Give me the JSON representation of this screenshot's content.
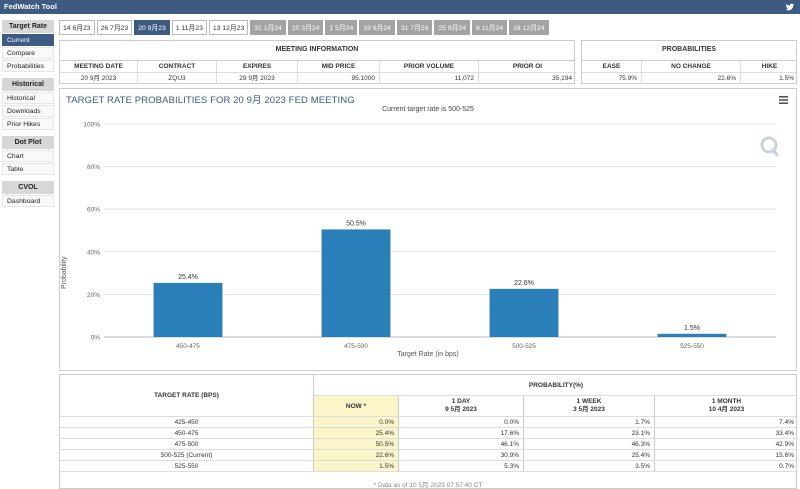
{
  "app": {
    "title": "FedWatch Tool"
  },
  "sidebar": {
    "groups": [
      {
        "header": "Target Rate",
        "items": [
          "Current",
          "Compare",
          "Probabilities"
        ]
      },
      {
        "header": "Historical",
        "items": [
          "Historical",
          "Downloads",
          "Prior Hikes"
        ]
      },
      {
        "header": "Dot Plot",
        "items": [
          "Chart",
          "Table"
        ]
      },
      {
        "header": "CVOL",
        "items": [
          "Dashboard"
        ]
      }
    ],
    "active_item": "Current"
  },
  "tabs": [
    {
      "label": "14 6月23",
      "state": "normal"
    },
    {
      "label": "26 7月23",
      "state": "normal"
    },
    {
      "label": "20 9月23",
      "state": "active"
    },
    {
      "label": "1 11月23",
      "state": "normal"
    },
    {
      "label": "13 12月23",
      "state": "normal"
    },
    {
      "label": "31 1月24",
      "state": "gray"
    },
    {
      "label": "20 3月24",
      "state": "gray"
    },
    {
      "label": "1 5月24",
      "state": "gray"
    },
    {
      "label": "19 6月24",
      "state": "gray"
    },
    {
      "label": "31 7月24",
      "state": "gray"
    },
    {
      "label": "25 9月24",
      "state": "gray"
    },
    {
      "label": "6 11月24",
      "state": "gray"
    },
    {
      "label": "18 12月24",
      "state": "gray"
    }
  ],
  "meeting_info": {
    "title": "MEETING INFORMATION",
    "headers": [
      "MEETING DATE",
      "CONTRACT",
      "EXPIRES",
      "MID PRICE",
      "PRIOR VOLUME",
      "PRIOR OI"
    ],
    "values": [
      "20 9月 2023",
      "ZQU3",
      "29 9月 2023",
      "95.1000",
      "11,072",
      "35,194"
    ]
  },
  "probabilities": {
    "title": "PROBABILITIES",
    "headers": [
      "EASE",
      "NO CHANGE",
      "HIKE"
    ],
    "values": [
      "75.9%",
      "22.6%",
      "1.5%"
    ]
  },
  "chart": {
    "title": "TARGET RATE PROBABILITIES FOR 20 9月 2023 FED MEETING",
    "subtitle": "Current target rate is 500-525"
  },
  "chart_data": {
    "type": "bar",
    "title": "TARGET RATE PROBABILITIES FOR 20 9月 2023 FED MEETING",
    "subtitle": "Current target rate is 500-525",
    "categories": [
      "450-475",
      "475-500",
      "500-525",
      "525-550"
    ],
    "values": [
      25.4,
      50.5,
      22.6,
      1.5
    ],
    "data_labels": [
      "25.4%",
      "50.5%",
      "22.6%",
      "1.5%"
    ],
    "xlabel": "Target Rate (in bps)",
    "ylabel": "Probability",
    "ylim": [
      0,
      100
    ],
    "yticks": [
      "0%",
      "20%",
      "40%",
      "60%",
      "80%",
      "100%"
    ],
    "bar_color": "#2a7fb8",
    "grid": true
  },
  "rate_table": {
    "header_rate": "TARGET RATE (BPS)",
    "header_prob": "PROBABILITY(%)",
    "columns": [
      {
        "label": "NOW *",
        "date": ""
      },
      {
        "label": "1 DAY",
        "date": "9 5月 2023"
      },
      {
        "label": "1 WEEK",
        "date": "3 5月 2023"
      },
      {
        "label": "1 MONTH",
        "date": "10 4月 2023"
      }
    ],
    "rows": [
      {
        "rate": "425-450",
        "now": "0.0%",
        "day": "0.0%",
        "week": "1.7%",
        "month": "7.4%"
      },
      {
        "rate": "450-475",
        "now": "25.4%",
        "day": "17.6%",
        "week": "23.1%",
        "month": "33.4%"
      },
      {
        "rate": "475-500",
        "now": "50.5%",
        "day": "46.1%",
        "week": "46.3%",
        "month": "42.9%"
      },
      {
        "rate": "500-525 (Current)",
        "now": "22.6%",
        "day": "30.9%",
        "week": "25.4%",
        "month": "15.6%"
      },
      {
        "rate": "525-550",
        "now": "1.5%",
        "day": "5.3%",
        "week": "3.5%",
        "month": "0.7%"
      }
    ],
    "footnote": "* Data as of 10 5月 2023 07:57:40 CT"
  },
  "colors": {
    "accent": "#3d5a80",
    "bar": "#2a7fb8",
    "now_highlight": "#fbf6c9",
    "tab_gray": "#a3a3a3"
  }
}
